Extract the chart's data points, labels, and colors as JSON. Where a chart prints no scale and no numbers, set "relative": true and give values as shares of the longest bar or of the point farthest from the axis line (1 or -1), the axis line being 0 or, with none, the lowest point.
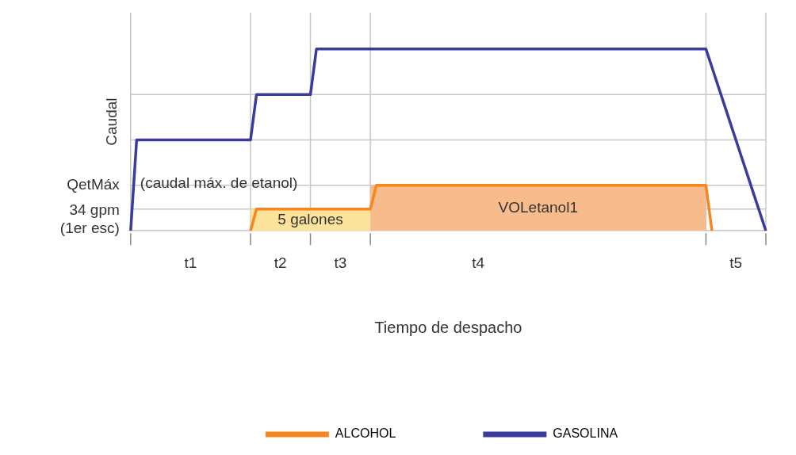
{
  "chart_data": {
    "type": "line",
    "relative": true,
    "xlabel": "Tiempo de despacho",
    "ylabel": "Caudal",
    "legend": "bottom",
    "marker": "none",
    "line_style": "solid",
    "categories": [
      null,
      null,
      null,
      null,
      null,
      null,
      null,
      null,
      null,
      null,
      "t1",
      null,
      null,
      null,
      null,
      null,
      null,
      null,
      null,
      null,
      null,
      null,
      null,
      null,
      null,
      "t2",
      null,
      null,
      null,
      null,
      null,
      null,
      null,
      null,
      null,
      "t3",
      null,
      null,
      null,
      null,
      null,
      null,
      null,
      null,
      null,
      null,
      null,
      null,
      null,
      null,
      null,
      null,
      null,
      null,
      null,
      null,
      null,
      null,
      "t4",
      null,
      null,
      null,
      null,
      null,
      null,
      null,
      null,
      null,
      null,
      null,
      null,
      null,
      null,
      null,
      null,
      null,
      null,
      null,
      null,
      null,
      null,
      null,
      null,
      null,
      null,
      null,
      null,
      null,
      null,
      null,
      null,
      null,
      null,
      null,
      null,
      null,
      null,
      null,
      null,
      null,
      null,
      "t5",
      null,
      null,
      null,
      null,
      null
    ],
    "series": [
      {
        "type": "area",
        "name": "5 galones",
        "color": "#fbe39c",
        "values": [
          null,
          null,
          null,
          null,
          null,
          null,
          null,
          null,
          null,
          null,
          null,
          null,
          null,
          null,
          null,
          null,
          null,
          null,
          null,
          null,
          0.12,
          0.12,
          0.12,
          0.12,
          0.12,
          0.12,
          0.12,
          0.12,
          0.12,
          0.12,
          0.12,
          0.12,
          0.12,
          0.12,
          0.12,
          0.12,
          0.12,
          0.12,
          0.12,
          0.12,
          0.12,
          null,
          null,
          null,
          null,
          null,
          null,
          null,
          null,
          null,
          null,
          null,
          null,
          null,
          null,
          null,
          null,
          null,
          null,
          null,
          null,
          null,
          null,
          null,
          null,
          null,
          null,
          null,
          null,
          null,
          null,
          null,
          null,
          null,
          null,
          null,
          null,
          null,
          null,
          null,
          null,
          null,
          null,
          null,
          null,
          null,
          null,
          null,
          null,
          null,
          null,
          null,
          null,
          null,
          null,
          null,
          null,
          null,
          null,
          null,
          null,
          null,
          null,
          null,
          null,
          null,
          null
        ]
      },
      {
        "type": "area",
        "name": "VOLetanol1",
        "color": "#f8bb8c",
        "values": [
          null,
          null,
          null,
          null,
          null,
          null,
          null,
          null,
          null,
          null,
          null,
          null,
          null,
          null,
          null,
          null,
          null,
          null,
          null,
          null,
          null,
          null,
          null,
          null,
          null,
          null,
          null,
          null,
          null,
          null,
          null,
          null,
          null,
          null,
          null,
          null,
          null,
          null,
          null,
          null,
          0.25,
          0.25,
          0.25,
          0.25,
          0.25,
          0.25,
          0.25,
          0.25,
          0.25,
          0.25,
          0.25,
          0.25,
          0.25,
          0.25,
          0.25,
          0.25,
          0.25,
          0.25,
          0.25,
          0.25,
          0.25,
          0.25,
          0.25,
          0.25,
          0.25,
          0.25,
          0.25,
          0.25,
          0.25,
          0.25,
          0.25,
          0.25,
          0.25,
          0.25,
          0.25,
          0.25,
          0.25,
          0.25,
          0.25,
          0.25,
          0.25,
          0.25,
          0.25,
          0.25,
          0.25,
          0.25,
          0.25,
          0.25,
          0.25,
          0.25,
          0.25,
          0.25,
          0.25,
          0.25,
          0.25,
          0.25,
          0.25,
          null,
          null,
          null,
          null,
          null,
          null,
          null,
          null,
          null,
          null
        ]
      },
      {
        "type": "line",
        "name": "ALCOHOL",
        "color": "#f7861f",
        "values": [
          null,
          null,
          null,
          null,
          null,
          null,
          null,
          null,
          null,
          null,
          null,
          null,
          null,
          null,
          null,
          null,
          null,
          null,
          null,
          null,
          0,
          0.12,
          0.12,
          0.12,
          0.12,
          0.12,
          0.12,
          0.12,
          0.12,
          0.12,
          0.12,
          0.12,
          0.12,
          0.12,
          0.12,
          0.12,
          0.12,
          0.12,
          0.12,
          0.12,
          0.12,
          0.25,
          0.25,
          0.25,
          0.25,
          0.25,
          0.25,
          0.25,
          0.25,
          0.25,
          0.25,
          0.25,
          0.25,
          0.25,
          0.25,
          0.25,
          0.25,
          0.25,
          0.25,
          0.25,
          0.25,
          0.25,
          0.25,
          0.25,
          0.25,
          0.25,
          0.25,
          0.25,
          0.25,
          0.25,
          0.25,
          0.25,
          0.25,
          0.25,
          0.25,
          0.25,
          0.25,
          0.25,
          0.25,
          0.25,
          0.25,
          0.25,
          0.25,
          0.25,
          0.25,
          0.25,
          0.25,
          0.25,
          0.25,
          0.25,
          0.25,
          0.25,
          0.25,
          0.25,
          0.25,
          0.25,
          0.25,
          0,
          null,
          null,
          null,
          null,
          null,
          null,
          null,
          null,
          null
        ]
      },
      {
        "type": "line",
        "name": "GASOLINA",
        "color": "#3b3b9e",
        "values": [
          0,
          0.5,
          0.5,
          0.5,
          0.5,
          0.5,
          0.5,
          0.5,
          0.5,
          0.5,
          0.5,
          0.5,
          0.5,
          0.5,
          0.5,
          0.5,
          0.5,
          0.5,
          0.5,
          0.5,
          0.5,
          0.75,
          0.75,
          0.75,
          0.75,
          0.75,
          0.75,
          0.75,
          0.75,
          0.75,
          0.75,
          1,
          1,
          1,
          1,
          1,
          1,
          1,
          1,
          1,
          1,
          1,
          1,
          1,
          1,
          1,
          1,
          1,
          1,
          1,
          1,
          1,
          1,
          1,
          1,
          1,
          1,
          1,
          1,
          1,
          1,
          1,
          1,
          1,
          1,
          1,
          1,
          1,
          1,
          1,
          1,
          1,
          1,
          1,
          1,
          1,
          1,
          1,
          1,
          1,
          1,
          1,
          1,
          1,
          1,
          1,
          1,
          1,
          1,
          1,
          1,
          1,
          1,
          1,
          1,
          1,
          1,
          0.9,
          0.8,
          0.7,
          0.6,
          0.5,
          0.4,
          0.3,
          0.2,
          0.1,
          0
        ]
      }
    ],
    "ref_lines": [
      {
        "axis": "y",
        "value": 0.12,
        "label": "34 gpm\n(1er esc)",
        "color": "#c8c8c8"
      },
      {
        "axis": "y",
        "value": 0.25,
        "label": "QetMáx",
        "color": "#c8c8c8"
      },
      {
        "axis": "y",
        "value": 0.5,
        "label": null,
        "color": "#c8c8c8"
      },
      {
        "axis": "y",
        "value": 0.75,
        "label": null,
        "color": "#c8c8c8"
      }
    ],
    "annotations": [
      {
        "text": "(caudal máx. de etanol)",
        "y": 0.25
      }
    ]
  }
}
